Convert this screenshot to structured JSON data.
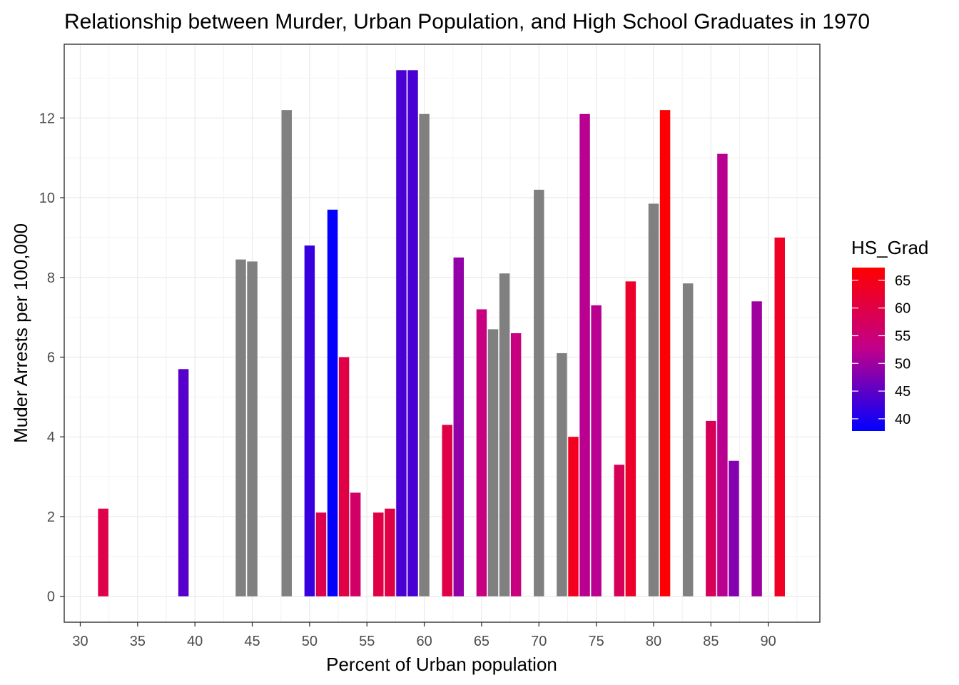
{
  "chart_data": {
    "type": "bar",
    "title": "Relationship between Murder, Urban Population, and High School Graduates in 1970",
    "xlabel": "Percent of Urban population",
    "ylabel": "Muder Arrests per 100,000",
    "xlim": [
      28.6,
      94.5
    ],
    "ylim": [
      -0.65,
      13.85
    ],
    "x_ticks": [
      30,
      35,
      40,
      45,
      50,
      55,
      60,
      65,
      70,
      75,
      80,
      85,
      90
    ],
    "y_ticks": [
      0,
      2,
      4,
      6,
      8,
      10,
      12
    ],
    "grid": true,
    "legend": {
      "title": "HS_Grad",
      "position": "right",
      "labels": [
        65,
        60,
        55,
        50,
        45,
        40
      ],
      "range": [
        37.8,
        67.3
      ],
      "low_color": "#0000ff",
      "high_color": "#ff0000",
      "na_color": "#808080"
    },
    "series": [
      {
        "x": [
          32,
          39,
          44,
          45,
          48,
          50,
          51,
          52,
          53,
          54,
          56,
          57,
          58,
          59,
          60,
          62,
          63,
          65,
          66,
          67,
          68,
          70,
          72,
          73,
          74,
          75,
          77,
          78,
          80,
          81,
          83,
          85,
          86,
          87,
          89,
          91
        ],
        "y": [
          2.2,
          5.7,
          8.45,
          8.4,
          12.2,
          8.8,
          2.1,
          9.7,
          6.0,
          2.6,
          2.1,
          2.2,
          13.2,
          13.2,
          12.1,
          4.3,
          8.5,
          7.2,
          6.7,
          8.1,
          6.6,
          10.2,
          6.1,
          4.0,
          12.1,
          7.3,
          3.3,
          7.9,
          9.85,
          12.2,
          7.85,
          4.4,
          11.1,
          3.4,
          7.4,
          9.0
        ],
        "hs_grad": [
          59.5,
          44.5,
          null,
          null,
          null,
          42.0,
          59.0,
          38.0,
          60.0,
          56.5,
          60.0,
          60.0,
          43.5,
          43.5,
          null,
          60.0,
          49.0,
          54.0,
          null,
          null,
          54.0,
          null,
          null,
          64.0,
          52.0,
          52.0,
          58.0,
          63.0,
          null,
          67.0,
          null,
          58.0,
          52.0,
          48.0,
          50.0,
          63.5
        ]
      }
    ]
  }
}
